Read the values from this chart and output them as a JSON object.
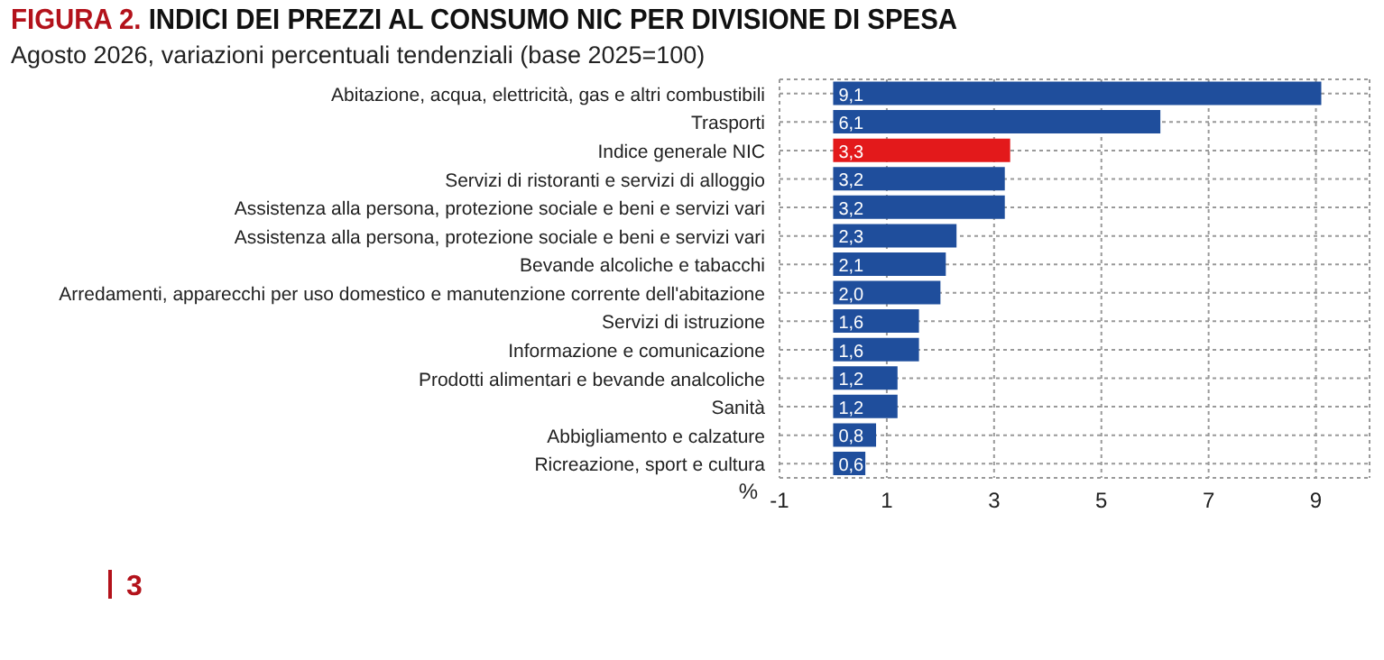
{
  "chart_data": {
    "type": "bar",
    "orientation": "horizontal",
    "title": "FIGURA 2. INDICI DEI PREZZI AL CONSUMO NIC PER DIVISIONE DI SPESA",
    "subtitle": "Agosto 2026, variazioni percentuali tendenziali (base 2025=100)",
    "xlabel": "%",
    "categories": [
      "Abitazione, acqua, elettricità, gas e altri combustibili",
      "Trasporti",
      "Indice generale NIC",
      "Servizi di ristoranti e servizi di alloggio",
      "Assistenza alla persona, protezione sociale e beni e servizi vari",
      "Assistenza alla persona, protezione sociale e beni e servizi vari",
      "Bevande alcoliche e tabacchi",
      "Arredamenti, apparecchi per uso domestico e manutenzione corrente dell'abitazione",
      "Servizi di istruzione",
      "Informazione e comunicazione",
      "Prodotti alimentari e bevande analcoliche",
      "Sanità",
      "Abbigliamento e calzature",
      "Ricreazione, sport e cultura"
    ],
    "values": [
      9.1,
      6.1,
      3.3,
      3.2,
      3.2,
      2.3,
      2.1,
      2.0,
      1.6,
      1.6,
      1.2,
      1.2,
      0.8,
      0.6
    ],
    "colors": [
      "#1f4e9c",
      "#1f4e9c",
      "#e3191b",
      "#1f4e9c",
      "#1f4e9c",
      "#1f4e9c",
      "#1f4e9c",
      "#1f4e9c",
      "#1f4e9c",
      "#1f4e9c",
      "#1f4e9c",
      "#1f4e9c",
      "#1f4e9c",
      "#1f4e9c"
    ],
    "value_labels": [
      "9,1",
      "6,1",
      "3,3",
      "3,2",
      "3,2",
      "2,3",
      "2,1",
      "2,0",
      "1,6",
      "1,6",
      "1,2",
      "1,2",
      "0,8",
      "0,6"
    ],
    "xlim": [
      -1,
      10
    ],
    "xticks": [
      -1,
      1,
      3,
      5,
      7,
      9
    ],
    "grid": true,
    "annotations": [
      "3"
    ]
  }
}
